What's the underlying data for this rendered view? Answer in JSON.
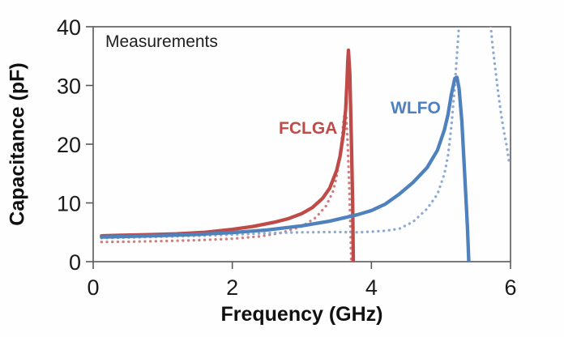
{
  "labels": {
    "annotation": "Measurements",
    "fclga": "FCLGA",
    "wlfo": "WLFO",
    "x_axis": "Frequency (GHz)",
    "y_axis": "Capacitance (pF)"
  },
  "colors": {
    "fclga_solid": "#BE4B48",
    "fclga_dotted": "#CF7F7D",
    "wlfo_solid": "#4F81BD",
    "wlfo_dotted": "#8FAAD2",
    "frame": "#595959",
    "tick_text": "#1a1a1a",
    "annotation_text": "#1f1f1f"
  },
  "chart_data": {
    "type": "line",
    "title": "",
    "annotation": "Measurements",
    "xlabel": "Frequency (GHz)",
    "ylabel": "Capacitance (pF)",
    "xlim": [
      0,
      6
    ],
    "ylim": [
      0,
      40
    ],
    "x_ticks": [
      "0",
      "2",
      "4",
      "6"
    ],
    "y_ticks": [
      "0",
      "10",
      "20",
      "30",
      "40"
    ],
    "grid": false,
    "legend_position": "inline-labels",
    "series": [
      {
        "id": "fclga-dotted",
        "label": "FCLGA",
        "style": "dotted",
        "color": "#CF7F7D",
        "segments": [
          [
            [
              0.12,
              3.35
            ],
            [
              0.5,
              3.4
            ],
            [
              1.0,
              3.5
            ],
            [
              1.5,
              3.65
            ],
            [
              2.0,
              3.9
            ],
            [
              2.4,
              4.3
            ],
            [
              2.7,
              4.9
            ],
            [
              3.0,
              6.0
            ],
            [
              3.2,
              7.5
            ],
            [
              3.35,
              9.5
            ],
            [
              3.45,
              12.0
            ],
            [
              3.5,
              14.5
            ],
            [
              3.55,
              18.0
            ],
            [
              3.58,
              21.5
            ],
            [
              3.6,
              24.0
            ],
            [
              3.62,
              25.5
            ],
            [
              3.64,
              24.5
            ],
            [
              3.66,
              20.0
            ],
            [
              3.68,
              13.0
            ],
            [
              3.7,
              5.0
            ],
            [
              3.71,
              0.0
            ]
          ]
        ]
      },
      {
        "id": "wlfo-dotted",
        "label": "WLFO",
        "style": "dotted",
        "color": "#8FAAD2",
        "segments": [
          [
            [
              0.12,
              4.0
            ],
            [
              0.5,
              4.1
            ],
            [
              1.0,
              4.25
            ],
            [
              1.5,
              4.4
            ],
            [
              2.0,
              4.6
            ],
            [
              2.5,
              4.85
            ],
            [
              3.0,
              5.0
            ],
            [
              3.5,
              5.05
            ],
            [
              3.8,
              5.0
            ],
            [
              4.0,
              5.1
            ],
            [
              4.2,
              5.25
            ],
            [
              4.4,
              5.6
            ],
            [
              4.6,
              6.8
            ],
            [
              4.8,
              9.0
            ],
            [
              4.95,
              11.5
            ],
            [
              5.05,
              15.0
            ],
            [
              5.1,
              18.0
            ],
            [
              5.15,
              23.0
            ],
            [
              5.2,
              30.0
            ],
            [
              5.24,
              37.0
            ],
            [
              5.27,
              42.0
            ]
          ],
          [
            [
              5.7,
              42.0
            ],
            [
              5.74,
              37.0
            ],
            [
              5.78,
              33.0
            ],
            [
              5.82,
              29.0
            ],
            [
              5.86,
              25.5
            ],
            [
              5.9,
              22.5
            ],
            [
              5.94,
              20.0
            ],
            [
              5.98,
              17.0
            ]
          ]
        ]
      },
      {
        "id": "fclga-solid",
        "label": "FCLGA",
        "style": "solid",
        "color": "#BE4B48",
        "segments": [
          [
            [
              0.12,
              4.4
            ],
            [
              0.4,
              4.5
            ],
            [
              0.8,
              4.6
            ],
            [
              1.2,
              4.75
            ],
            [
              1.6,
              5.0
            ],
            [
              2.0,
              5.5
            ],
            [
              2.3,
              6.0
            ],
            [
              2.6,
              6.7
            ],
            [
              2.8,
              7.3
            ],
            [
              3.0,
              8.2
            ],
            [
              3.15,
              9.2
            ],
            [
              3.3,
              10.8
            ],
            [
              3.4,
              12.5
            ],
            [
              3.5,
              15.5
            ],
            [
              3.55,
              18.0
            ],
            [
              3.6,
              22.0
            ],
            [
              3.63,
              26.0
            ],
            [
              3.65,
              31.0
            ],
            [
              3.66,
              34.0
            ],
            [
              3.67,
              36.0
            ],
            [
              3.69,
              32.0
            ],
            [
              3.71,
              22.0
            ],
            [
              3.73,
              10.0
            ],
            [
              3.74,
              0.0
            ]
          ]
        ]
      },
      {
        "id": "wlfo-solid",
        "label": "WLFO",
        "style": "solid",
        "color": "#4F81BD",
        "segments": [
          [
            [
              0.12,
              4.2
            ],
            [
              0.5,
              4.3
            ],
            [
              1.0,
              4.45
            ],
            [
              1.5,
              4.65
            ],
            [
              2.0,
              4.95
            ],
            [
              2.5,
              5.4
            ],
            [
              3.0,
              6.1
            ],
            [
              3.4,
              6.9
            ],
            [
              3.8,
              8.0
            ],
            [
              4.0,
              8.7
            ],
            [
              4.2,
              9.8
            ],
            [
              4.4,
              11.5
            ],
            [
              4.6,
              13.5
            ],
            [
              4.8,
              16.0
            ],
            [
              4.95,
              19.0
            ],
            [
              5.05,
              22.5
            ],
            [
              5.1,
              25.0
            ],
            [
              5.15,
              28.5
            ],
            [
              5.2,
              31.2
            ],
            [
              5.23,
              31.4
            ],
            [
              5.26,
              29.5
            ],
            [
              5.3,
              24.0
            ],
            [
              5.34,
              15.0
            ],
            [
              5.38,
              6.0
            ],
            [
              5.4,
              0.0
            ]
          ]
        ]
      }
    ]
  }
}
